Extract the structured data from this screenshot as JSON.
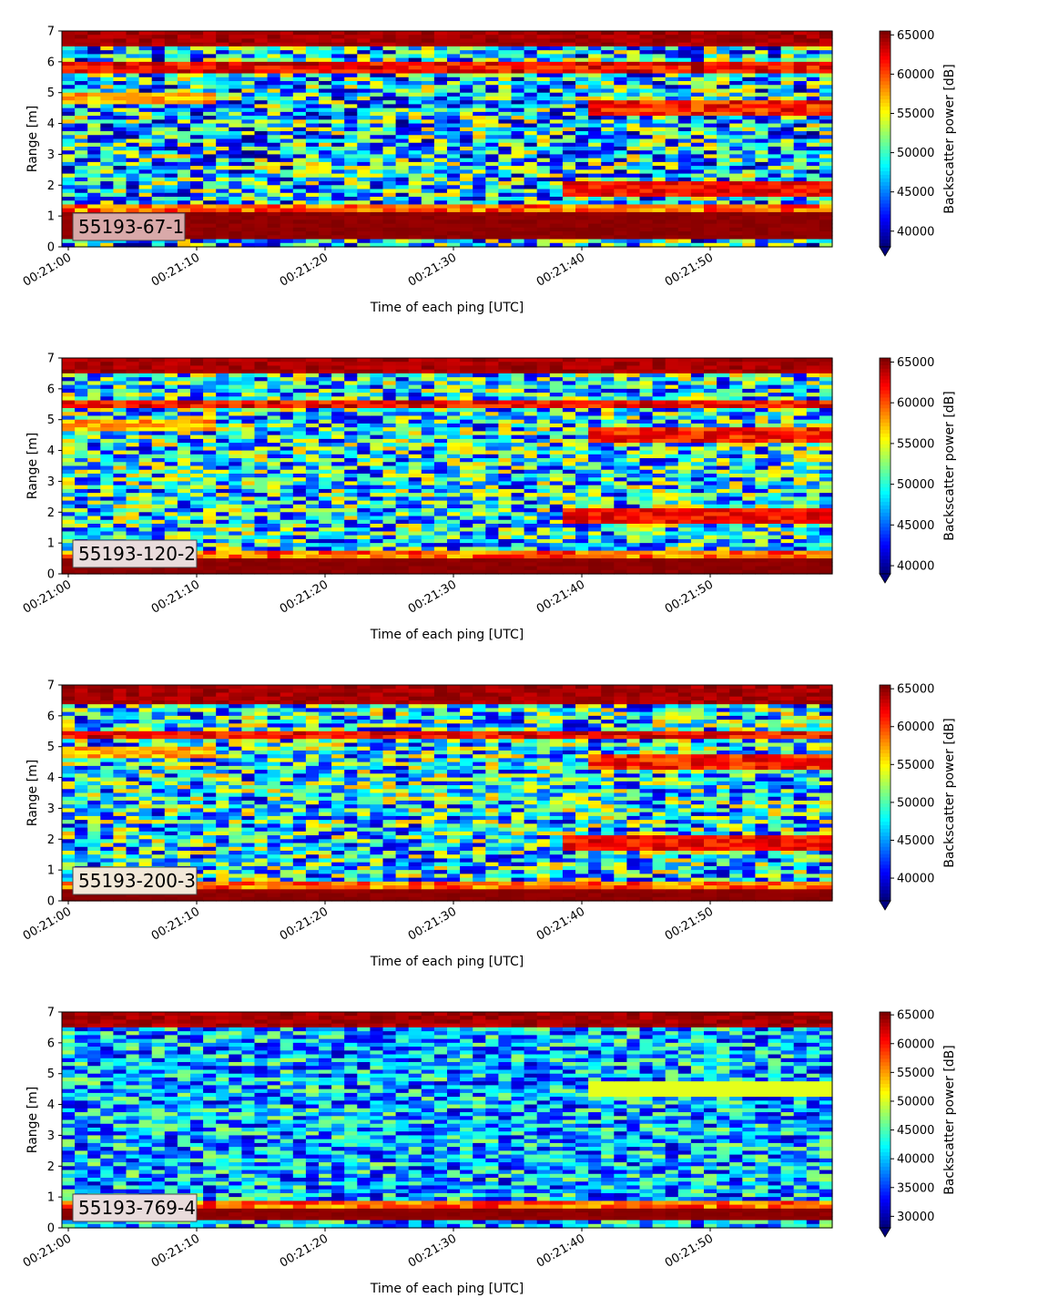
{
  "chart_data": [
    {
      "type": "heatmap",
      "label": "55193-67-1",
      "xlabel": "Time of each ping [UTC]",
      "ylabel": "Range [m]",
      "ylim": [
        0,
        7
      ],
      "yticks": [
        "0",
        "1",
        "2",
        "3",
        "4",
        "5",
        "6",
        "7"
      ],
      "xticks": [
        "00:21:00",
        "00:21:10",
        "00:21:20",
        "00:21:30",
        "00:21:40",
        "00:21:50"
      ],
      "colorbar_label": "Backscatter power [dB]",
      "colorbar_range": [
        38000,
        65500
      ],
      "colorbar_ticks": [
        "40000",
        "45000",
        "50000",
        "55000",
        "60000",
        "65000"
      ],
      "colormap": "jet",
      "label_box_color": "#d9a9a9"
    },
    {
      "type": "heatmap",
      "label": "55193-120-2",
      "xlabel": "Time of each ping [UTC]",
      "ylabel": "Range [m]",
      "ylim": [
        0,
        7
      ],
      "yticks": [
        "0",
        "1",
        "2",
        "3",
        "4",
        "5",
        "6",
        "7"
      ],
      "xticks": [
        "00:21:00",
        "00:21:10",
        "00:21:20",
        "00:21:30",
        "00:21:40",
        "00:21:50"
      ],
      "colorbar_label": "Backscatter power [dB]",
      "colorbar_range": [
        39000,
        65500
      ],
      "colorbar_ticks": [
        "40000",
        "45000",
        "50000",
        "55000",
        "60000",
        "65000"
      ],
      "colormap": "jet",
      "label_box_color": "#e9dcdc"
    },
    {
      "type": "heatmap",
      "label": "55193-200-3",
      "xlabel": "Time of each ping [UTC]",
      "ylabel": "Range [m]",
      "ylim": [
        0,
        7
      ],
      "yticks": [
        "0",
        "1",
        "2",
        "3",
        "4",
        "5",
        "6",
        "7"
      ],
      "xticks": [
        "00:21:00",
        "00:21:10",
        "00:21:20",
        "00:21:30",
        "00:21:40",
        "00:21:50"
      ],
      "colorbar_label": "Backscatter power [dB]",
      "colorbar_range": [
        37000,
        65500
      ],
      "colorbar_ticks": [
        "40000",
        "45000",
        "50000",
        "55000",
        "60000",
        "65000"
      ],
      "colormap": "jet",
      "label_box_color": "#f2e8d8"
    },
    {
      "type": "heatmap",
      "label": "55193-769-4",
      "xlabel": "Time of each ping [UTC]",
      "ylabel": "Range [m]",
      "ylim": [
        0,
        7
      ],
      "yticks": [
        "0",
        "1",
        "2",
        "3",
        "4",
        "5",
        "6",
        "7"
      ],
      "xticks": [
        "00:21:00",
        "00:21:10",
        "00:21:20",
        "00:21:30",
        "00:21:40",
        "00:21:50"
      ],
      "colorbar_label": "Backscatter power [dB]",
      "colorbar_range": [
        28000,
        65500
      ],
      "colorbar_ticks": [
        "30000",
        "35000",
        "40000",
        "45000",
        "50000",
        "55000",
        "60000",
        "65000"
      ],
      "colormap": "jet",
      "label_box_color": "#e9dcdc"
    }
  ]
}
